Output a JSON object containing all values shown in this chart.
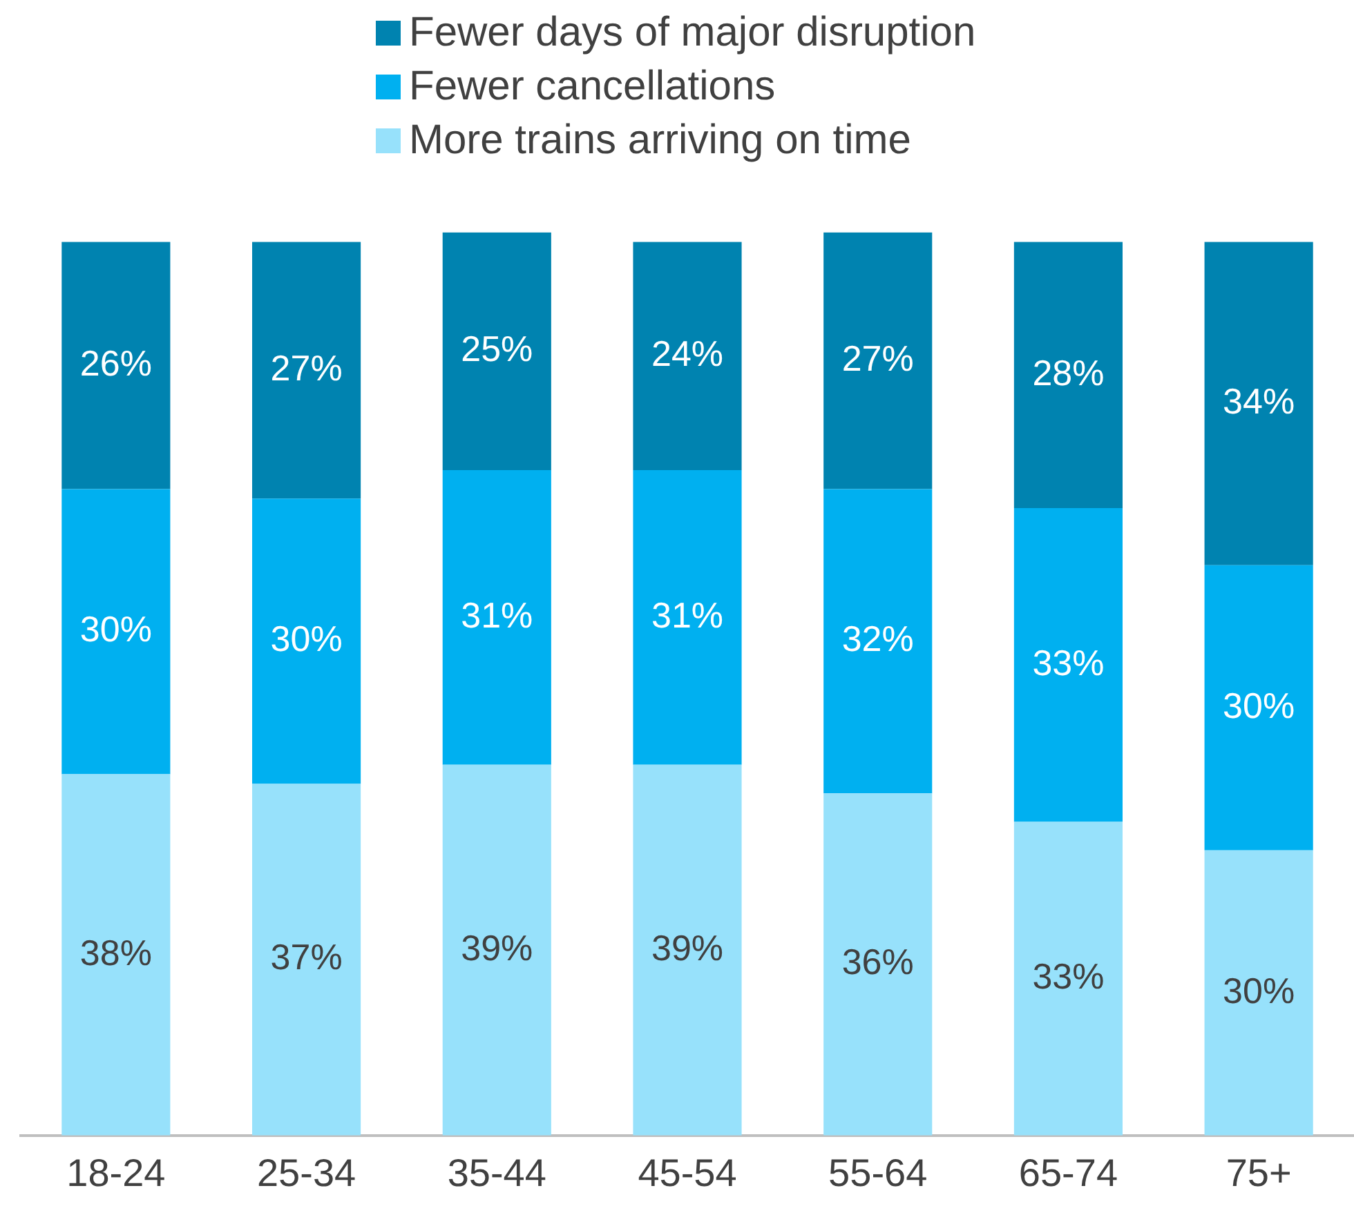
{
  "chart_data": {
    "type": "bar",
    "stacked": true,
    "legend": "top",
    "grid": false,
    "categories": [
      "18-24",
      "25-34",
      "35-44",
      "45-54",
      "55-64",
      "65-74",
      "75+"
    ],
    "series": [
      {
        "name": "More trains arriving on time",
        "color": "#97e1fb",
        "values": [
          38,
          37,
          39,
          39,
          36,
          33,
          30
        ],
        "value_labels": [
          "38%",
          "37%",
          "39%",
          "39%",
          "36%",
          "33%",
          "30%"
        ]
      },
      {
        "name": "Fewer cancellations",
        "color": "#00b0f0",
        "values": [
          30,
          30,
          31,
          31,
          32,
          33,
          30
        ],
        "value_labels": [
          "30%",
          "30%",
          "31%",
          "31%",
          "32%",
          "33%",
          "30%"
        ]
      },
      {
        "name": "Fewer days of major disruption",
        "color": "#0083b0",
        "values": [
          26,
          27,
          25,
          24,
          27,
          28,
          34
        ],
        "value_labels": [
          "26%",
          "27%",
          "25%",
          "24%",
          "27%",
          "28%",
          "34%"
        ]
      }
    ]
  }
}
